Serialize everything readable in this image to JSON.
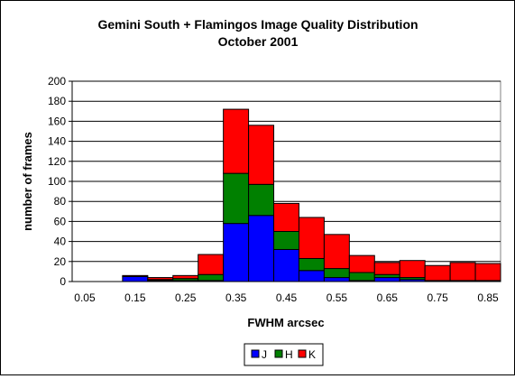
{
  "chart_data": {
    "type": "bar",
    "stacked": true,
    "title": "Gemini South + Flamingos Image Quality Distribution",
    "subtitle": "October 2001",
    "xlabel": "FWHM arcsec",
    "ylabel": "number of frames",
    "ylim": [
      0,
      200
    ],
    "yticks": [
      0,
      20,
      40,
      60,
      80,
      100,
      120,
      140,
      160,
      180,
      200
    ],
    "grid": true,
    "legend_position": "bottom",
    "x_tick_labels": [
      "0.05",
      "0.15",
      "0.25",
      "0.35",
      "0.45",
      "0.55",
      "0.65",
      "0.75",
      "0.85"
    ],
    "categories": [
      "0.05",
      "0.10",
      "0.15",
      "0.20",
      "0.25",
      "0.30",
      "0.35",
      "0.40",
      "0.45",
      "0.50",
      "0.55",
      "0.60",
      "0.65",
      "0.70",
      "0.75",
      "0.80",
      "0.85"
    ],
    "series": [
      {
        "name": "J",
        "color": "#0000ff",
        "values": [
          0,
          0,
          5,
          1,
          1,
          1,
          58,
          66,
          32,
          11,
          4,
          1,
          4,
          2,
          1,
          1,
          1
        ]
      },
      {
        "name": "H",
        "color": "#008000",
        "values": [
          0,
          0,
          0,
          1,
          2,
          6,
          50,
          31,
          18,
          12,
          9,
          8,
          3,
          2,
          0,
          0,
          0
        ]
      },
      {
        "name": "K",
        "color": "#ff0000",
        "values": [
          0,
          0,
          1,
          2,
          3,
          20,
          64,
          59,
          28,
          41,
          34,
          17,
          12,
          17,
          15,
          18,
          17
        ]
      }
    ]
  }
}
